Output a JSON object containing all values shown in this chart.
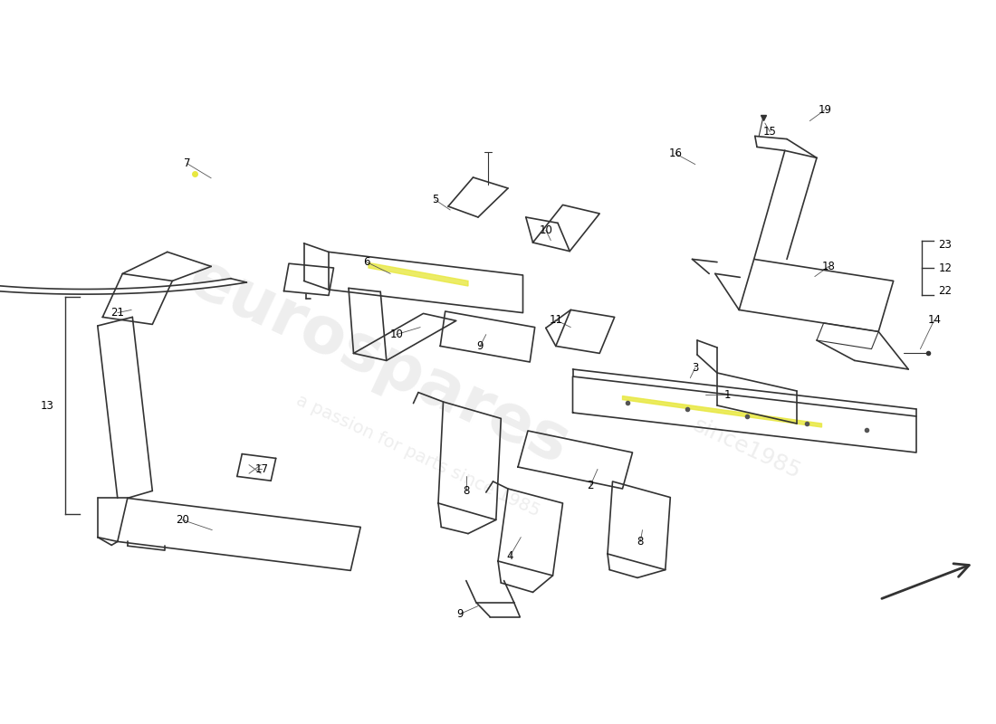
{
  "background_color": "#ffffff",
  "watermark_text1": "eurospares",
  "watermark_text2": "a passion for parts since 1985",
  "watermark_color": "#d0d0d0",
  "line_color": "#333333",
  "label_color": "#000000",
  "highlight_yellow": "#e8e840"
}
